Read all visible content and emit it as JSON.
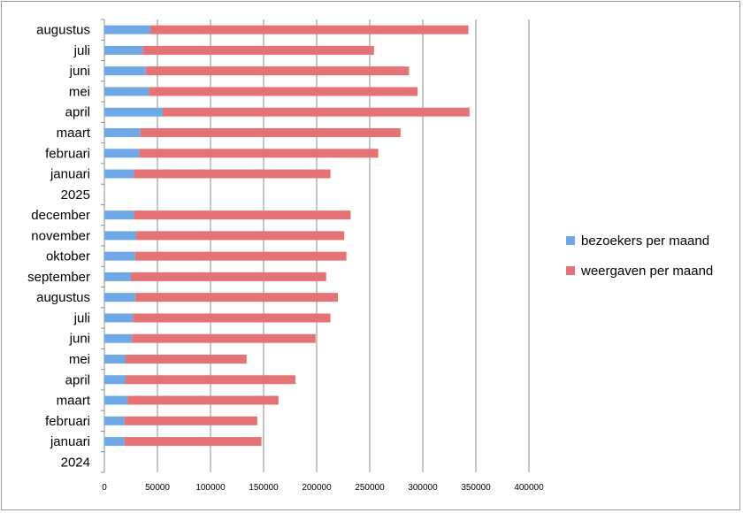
{
  "chart_data": {
    "type": "bar",
    "orientation": "horizontal",
    "stacked": true,
    "title": "",
    "xlabel": "",
    "ylabel": "",
    "xlim": [
      0,
      400000
    ],
    "x_ticks": [
      0,
      50000,
      100000,
      150000,
      200000,
      250000,
      300000,
      350000,
      400000
    ],
    "x_tick_labels": [
      "0",
      "50000",
      "100000",
      "150000",
      "200000",
      "250000",
      "300000",
      "350000",
      "400000"
    ],
    "grid": true,
    "legend_position": "right",
    "categories": [
      "augustus",
      "juli",
      "juni",
      "mei",
      "april",
      "maart",
      "februari",
      "januari",
      "2025",
      "december",
      "november",
      "oktober",
      "september",
      "augustus",
      "juli",
      "juni",
      "mei",
      "april",
      "maart",
      "februari",
      "januari",
      "2024"
    ],
    "series": [
      {
        "name": "bezoekers per maand",
        "color": "#6fa8e6",
        "values": [
          43000,
          36000,
          39000,
          42000,
          55000,
          34000,
          33000,
          28000,
          null,
          28000,
          30000,
          29000,
          25000,
          29000,
          27000,
          26000,
          20000,
          20000,
          22000,
          19000,
          19000,
          null
        ]
      },
      {
        "name": "weergaven per maand",
        "color": "#e57373",
        "values": [
          300000,
          218000,
          248000,
          253000,
          289000,
          245000,
          225000,
          185000,
          null,
          204000,
          196000,
          199000,
          184000,
          191000,
          186000,
          173000,
          114000,
          160000,
          142000,
          125000,
          129000,
          null
        ]
      }
    ]
  }
}
